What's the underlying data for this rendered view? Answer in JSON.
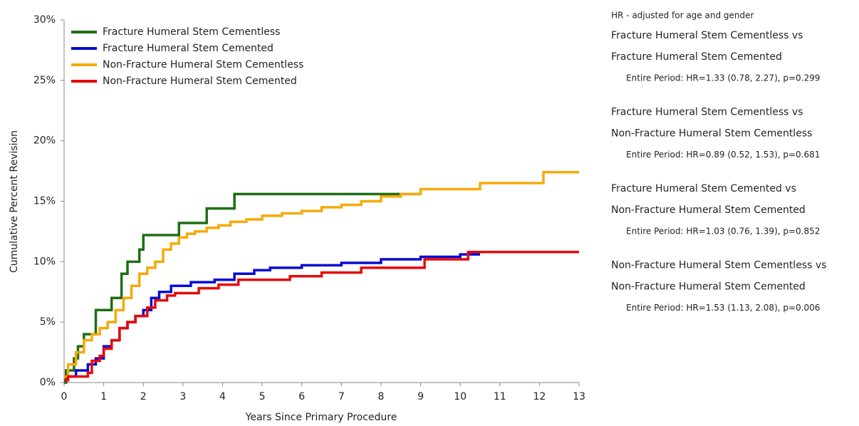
{
  "chart_data": {
    "type": "line",
    "step": true,
    "x_label": "Years Since Primary Procedure",
    "y_label": "Cumulative Percent Revision",
    "xlim": [
      0,
      13
    ],
    "xticks": [
      0,
      1,
      2,
      3,
      4,
      5,
      6,
      7,
      8,
      9,
      10,
      11,
      12,
      13
    ],
    "ylim": [
      0,
      30
    ],
    "yticks": [
      {
        "value": 0,
        "label": "0%"
      },
      {
        "value": 5,
        "label": "5%"
      },
      {
        "value": 10,
        "label": "10%"
      },
      {
        "value": 15,
        "label": "15%"
      },
      {
        "value": 20,
        "label": "20%"
      },
      {
        "value": 25,
        "label": "25%"
      },
      {
        "value": 30,
        "label": "30%"
      }
    ],
    "legend": "top-left",
    "series": [
      {
        "name": "Fracture Humeral Stem Cementless",
        "color": "#1e6e14",
        "x": [
          0,
          0.05,
          0.25,
          0.35,
          0.5,
          0.8,
          1.2,
          1.45,
          1.6,
          1.9,
          2.0,
          2.9,
          3.6,
          4.3,
          9.0
        ],
        "values": [
          0,
          1,
          2,
          3,
          4,
          6,
          7,
          9,
          10,
          11,
          12.2,
          13.2,
          14.4,
          15.6,
          15.6
        ]
      },
      {
        "name": "Fracture Humeral Stem Cemented",
        "color": "#0a0ad2",
        "x": [
          0,
          0.3,
          0.6,
          0.8,
          1.0,
          1.2,
          1.4,
          1.6,
          1.8,
          2.0,
          2.2,
          2.4,
          2.7,
          3.2,
          3.8,
          4.3,
          4.8,
          5.2,
          6.0,
          7.0,
          8.0,
          9.0,
          10.0,
          10.5
        ],
        "values": [
          0.5,
          1,
          1.5,
          2,
          3,
          3.5,
          4.5,
          5,
          5.5,
          6,
          7,
          7.5,
          8,
          8.3,
          8.5,
          9,
          9.3,
          9.5,
          9.7,
          9.9,
          10.2,
          10.4,
          10.6,
          10.6
        ]
      },
      {
        "name": "Non-Fracture Humeral Stem Cementless",
        "color": "#f5aa0a",
        "x": [
          0,
          0.1,
          0.3,
          0.5,
          0.7,
          0.9,
          1.1,
          1.3,
          1.5,
          1.7,
          1.9,
          2.1,
          2.3,
          2.5,
          2.7,
          2.9,
          3.1,
          3.3,
          3.6,
          3.9,
          4.2,
          4.6,
          5.0,
          5.5,
          6.0,
          6.5,
          7.0,
          7.5,
          8.0,
          8.5,
          9.0,
          10.5,
          12.1,
          13.0
        ],
        "values": [
          0.5,
          1.5,
          2.5,
          3.5,
          4,
          4.5,
          5,
          6,
          7,
          8,
          9,
          9.5,
          10,
          11,
          11.5,
          12,
          12.3,
          12.5,
          12.8,
          13,
          13.3,
          13.5,
          13.8,
          14,
          14.2,
          14.5,
          14.7,
          15,
          15.4,
          15.6,
          16,
          16.5,
          17.4,
          17.4
        ]
      },
      {
        "name": "Non-Fracture Humeral Stem Cemented",
        "color": "#e60a0a",
        "x": [
          0,
          0.1,
          0.6,
          0.7,
          0.9,
          1.0,
          1.2,
          1.4,
          1.6,
          1.8,
          2.1,
          2.3,
          2.6,
          2.8,
          3.4,
          3.9,
          4.4,
          5.7,
          6.5,
          7.5,
          9.1,
          10.2,
          13.0
        ],
        "values": [
          0.2,
          0.5,
          0.8,
          1.8,
          2.2,
          2.8,
          3.5,
          4.5,
          5,
          5.5,
          6.2,
          6.8,
          7.2,
          7.4,
          7.8,
          8.1,
          8.5,
          8.8,
          9.1,
          9.5,
          10.2,
          10.8,
          10.8
        ]
      }
    ]
  },
  "hazard_ratios": {
    "title": "HR - adjusted for age and gender",
    "comparisons": [
      {
        "lines": [
          "Fracture Humeral Stem Cementless vs",
          "Fracture Humeral Stem Cemented"
        ],
        "detail": "Entire Period: HR=1.33 (0.78, 2.27), p=0.299"
      },
      {
        "lines": [
          "Fracture Humeral Stem Cementless vs",
          "Non-Fracture Humeral Stem Cementless"
        ],
        "detail": "Entire Period: HR=0.89 (0.52, 1.53), p=0.681"
      },
      {
        "lines": [
          "Fracture Humeral Stem Cemented vs",
          "Non-Fracture Humeral Stem Cemented"
        ],
        "detail": "Entire Period: HR=1.03 (0.76, 1.39), p=0.852"
      },
      {
        "lines": [
          "Non-Fracture Humeral Stem Cementless vs",
          "Non-Fracture Humeral Stem Cemented"
        ],
        "detail": "Entire Period: HR=1.53 (1.13, 2.08), p=0.006"
      }
    ]
  }
}
